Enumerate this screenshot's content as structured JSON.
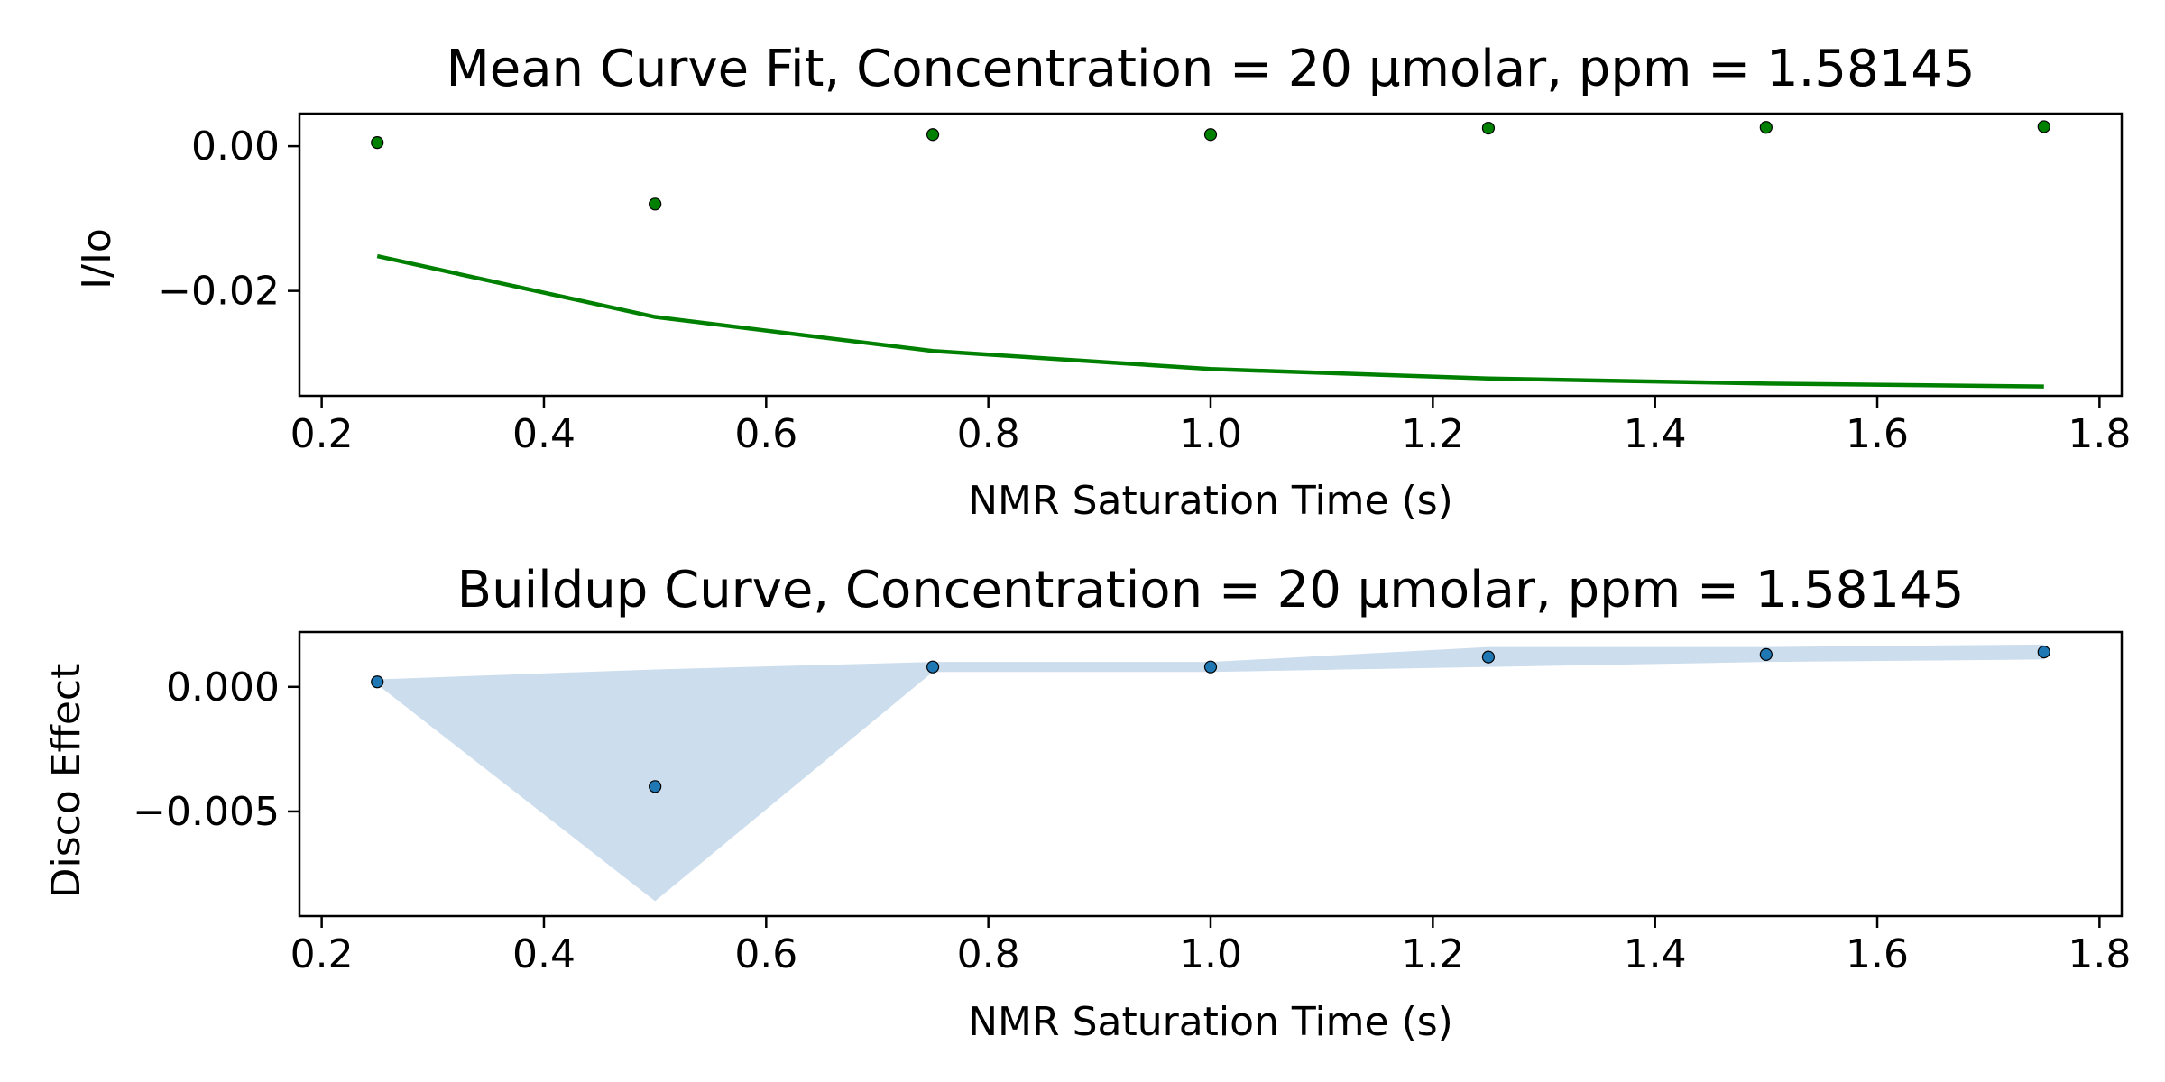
{
  "chart_data": [
    {
      "type": "scatter+line",
      "title": "Mean Curve Fit, Concentration = 20 μmolar, ppm = 1.58145",
      "xlabel": "NMR Saturation Time (s)",
      "ylabel": "I/Io",
      "xlim": [
        0.18,
        1.82
      ],
      "ylim": [
        -0.0345,
        0.0045
      ],
      "xticks": [
        0.2,
        0.4,
        0.6,
        0.8,
        1.0,
        1.2,
        1.4,
        1.6,
        1.8
      ],
      "xtick_labels": [
        "0.2",
        "0.4",
        "0.6",
        "0.8",
        "1.0",
        "1.2",
        "1.4",
        "1.6",
        "1.8"
      ],
      "yticks": [
        0.0,
        -0.02
      ],
      "ytick_labels": [
        "0.00",
        "−0.02"
      ],
      "series": [
        {
          "name": "mean points",
          "kind": "scatter",
          "color": "#008000",
          "x": [
            0.25,
            0.5,
            0.75,
            1.0,
            1.25,
            1.5,
            1.75
          ],
          "y": [
            0.0005,
            -0.008,
            0.0016,
            0.0016,
            0.0025,
            0.0026,
            0.0027
          ]
        },
        {
          "name": "curve fit",
          "kind": "line",
          "color": "#008000",
          "x": [
            0.25,
            0.5,
            0.75,
            1.0,
            1.25,
            1.5,
            1.75
          ],
          "y": [
            -0.0152,
            -0.0236,
            -0.0283,
            -0.0308,
            -0.0321,
            -0.0328,
            -0.0332
          ]
        }
      ]
    },
    {
      "type": "scatter+area",
      "title": "Buildup Curve, Concentration = 20 μmolar, ppm = 1.58145",
      "xlabel": "NMR Saturation Time (s)",
      "ylabel": "Disco Effect",
      "xlim": [
        0.18,
        1.82
      ],
      "ylim": [
        -0.0092,
        0.0022
      ],
      "xticks": [
        0.2,
        0.4,
        0.6,
        0.8,
        1.0,
        1.2,
        1.4,
        1.6,
        1.8
      ],
      "xtick_labels": [
        "0.2",
        "0.4",
        "0.6",
        "0.8",
        "1.0",
        "1.2",
        "1.4",
        "1.6",
        "1.8"
      ],
      "yticks": [
        0.0,
        -0.005
      ],
      "ytick_labels": [
        "0.000",
        "−0.005"
      ],
      "series": [
        {
          "name": "disco effect points",
          "kind": "scatter",
          "color": "#1f77b4",
          "x": [
            0.25,
            0.5,
            0.75,
            1.0,
            1.25,
            1.5,
            1.75
          ],
          "y": [
            0.0002,
            -0.004,
            0.0008,
            0.0008,
            0.0012,
            0.0013,
            0.0014
          ]
        },
        {
          "name": "error band",
          "kind": "band",
          "color": "#ccdded",
          "x": [
            0.25,
            0.5,
            0.75,
            1.0,
            1.25,
            1.5,
            1.75
          ],
          "y_upper": [
            0.0003,
            0.0007,
            0.001,
            0.001,
            0.0016,
            0.0016,
            0.0017
          ],
          "y_lower": [
            0.0001,
            -0.0086,
            0.0006,
            0.0006,
            0.0008,
            0.001,
            0.0011
          ]
        }
      ]
    }
  ]
}
